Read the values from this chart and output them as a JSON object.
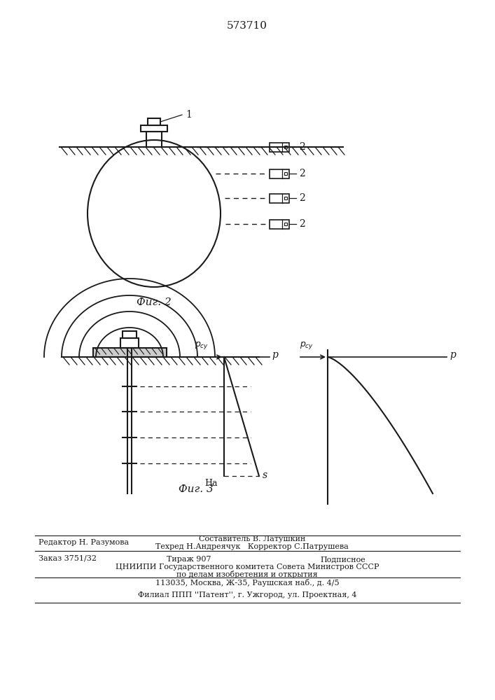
{
  "patent_number": "573710",
  "fig2_caption": "Фиг. 2",
  "fig3_caption": "Фиг. 3",
  "footer_line1_left": "Редактор Н. Разумова",
  "footer_line1_right": "Составитель В. Латушкин",
  "footer_line2_right": "Техред Н.Андреячук   Корректор С.Патрушева",
  "footer_zakaz": "Заказ 3751/32",
  "footer_tirazh": "Тираж 907",
  "footer_podpisnoe": "Подписное",
  "footer_cniip1": "ЦНИИПИ Государственного комитета Совета Министров СССР",
  "footer_cniip2": "по делам изобретения и открытия",
  "footer_cniip3": "113035, Москва, Ж-35, Раушская наб., д. 4/5",
  "footer_filial": "Филиал ППП ''Патент'', г. Ужгород, ул. Проектная, 4",
  "bg_color": "#ffffff",
  "line_color": "#1a1a1a"
}
